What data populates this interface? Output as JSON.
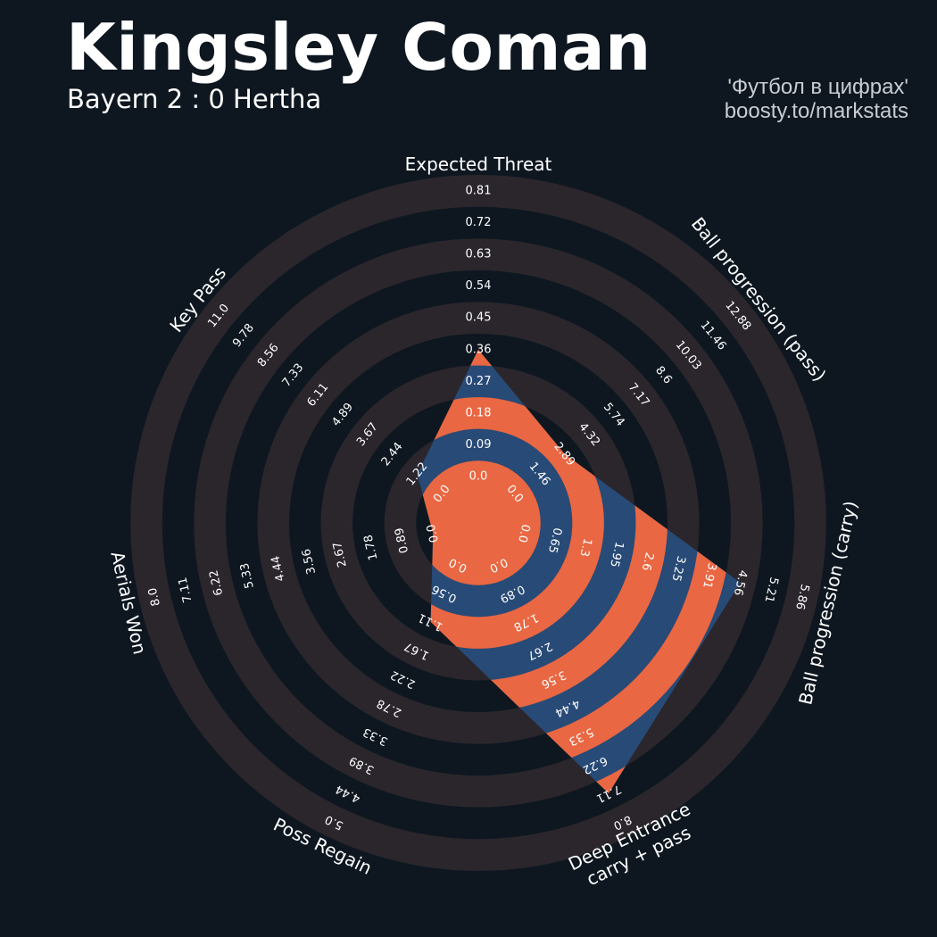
{
  "header": {
    "player_name": "Kingsley Coman",
    "match": "Bayern 2 : 0 Hertha",
    "credit_line1": "'Футбол в цифрах'",
    "credit_line2": "boosty.to/markstats"
  },
  "colors": {
    "background": "#0e1720",
    "ring": "#2a262c",
    "fill_blue": "#284a76",
    "fill_orange": "#e96742",
    "text": "#ffffff"
  },
  "chart_data": {
    "type": "radar",
    "title": "Kingsley Coman",
    "subtitle": "Bayern 2 : 0 Hertha",
    "parameters": [
      {
        "label": "Expected Threat",
        "value": 0.36,
        "range": [
          0.0,
          0.81
        ],
        "ticks": [
          "0.0",
          "0.09",
          "0.18",
          "0.27",
          "0.36",
          "0.45",
          "0.54",
          "0.63",
          "0.72",
          "0.81"
        ]
      },
      {
        "label": "Ball progression (pass)",
        "value": 2.89,
        "range": [
          0.0,
          12.88
        ],
        "ticks": [
          "0.0",
          "1.46",
          "2.89",
          "4.32",
          "5.74",
          "7.17",
          "8.6",
          "10.03",
          "11.46",
          "12.88"
        ]
      },
      {
        "label": "Ball progression (carry)",
        "value": 4.56,
        "range": [
          0.0,
          5.86
        ],
        "ticks": [
          "0.0",
          "0.65",
          "1.3",
          "1.95",
          "2.6",
          "3.25",
          "3.91",
          "4.56",
          "5.21",
          "5.86"
        ]
      },
      {
        "label": "Deep Entrance\ncarry + pass",
        "value": 7.11,
        "range": [
          0.0,
          8.0
        ],
        "ticks": [
          "0.0",
          "0.89",
          "1.78",
          "2.67",
          "3.56",
          "4.44",
          "5.33",
          "6.22",
          "7.11",
          "8.0"
        ]
      },
      {
        "label": "Poss Regain",
        "value": 1.11,
        "range": [
          0.0,
          5.0
        ],
        "ticks": [
          "0.0",
          "0.56",
          "1.11",
          "1.67",
          "2.22",
          "2.78",
          "3.33",
          "3.89",
          "4.44",
          "5.0"
        ]
      },
      {
        "label": "Aerials Won",
        "value": 0.0,
        "range": [
          0.0,
          8.0
        ],
        "ticks": [
          "0.0",
          "0.89",
          "1.78",
          "2.67",
          "3.56",
          "4.44",
          "5.33",
          "6.22",
          "7.11",
          "8.0"
        ]
      },
      {
        "label": "Key Pass",
        "value": 1.22,
        "range": [
          0.0,
          11.0
        ],
        "ticks": [
          "0.0",
          "1.22",
          "2.44",
          "3.67",
          "4.89",
          "6.11",
          "7.33",
          "8.56",
          "9.78",
          "11.0"
        ]
      }
    ]
  }
}
